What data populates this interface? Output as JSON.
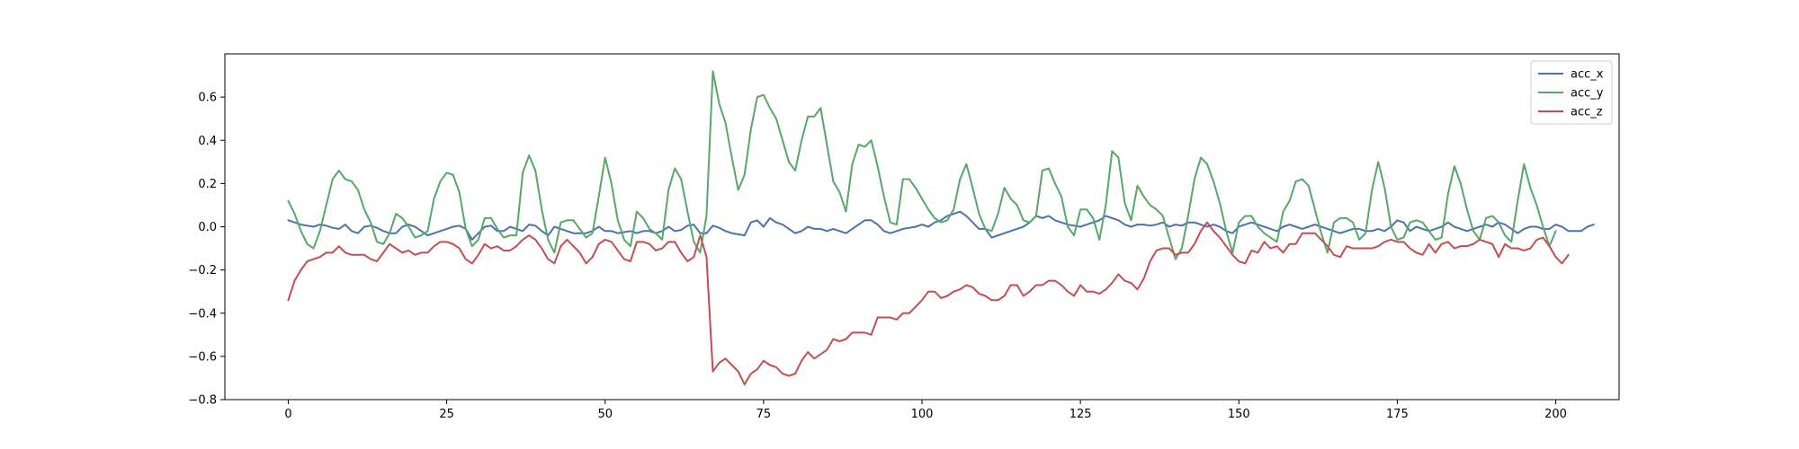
{
  "chart_data": {
    "type": "line",
    "title": "",
    "xlabel": "",
    "ylabel": "",
    "xlim": [
      -10,
      210
    ],
    "ylim": [
      -0.8,
      0.8
    ],
    "grid": false,
    "legend_position": "top-right",
    "x_ticks": [
      0,
      25,
      50,
      75,
      100,
      125,
      150,
      175,
      200
    ],
    "x_tick_labels": [
      "0",
      "25",
      "50",
      "75",
      "100",
      "125",
      "150",
      "175",
      "200"
    ],
    "y_ticks": [
      -0.8,
      -0.6,
      -0.4,
      -0.2,
      0.0,
      0.2,
      0.4,
      0.6
    ],
    "y_tick_labels": [
      "−0.8",
      "−0.6",
      "−0.4",
      "−0.2",
      "0.0",
      "0.2",
      "0.4",
      "0.6"
    ],
    "x_start": 0,
    "x_step": 1,
    "series": [
      {
        "name": "acc_x",
        "color": "#4c72b0",
        "values": [
          0.03,
          0.02,
          0.01,
          0.005,
          0.0,
          0.01,
          0.005,
          -0.005,
          -0.01,
          0.01,
          -0.02,
          -0.03,
          0.0,
          0.005,
          -0.005,
          -0.02,
          -0.03,
          -0.03,
          0.0,
          0.01,
          0.0,
          -0.02,
          -0.04,
          -0.03,
          -0.02,
          -0.01,
          0.0,
          0.005,
          -0.01,
          -0.06,
          -0.03,
          0.0,
          0.005,
          -0.02,
          -0.02,
          0.0,
          -0.01,
          -0.02,
          0.01,
          0.005,
          -0.02,
          -0.04,
          0.0,
          -0.01,
          -0.02,
          -0.03,
          -0.03,
          -0.03,
          -0.02,
          0.0,
          -0.02,
          -0.02,
          -0.03,
          -0.025,
          -0.02,
          -0.03,
          -0.02,
          -0.02,
          -0.03,
          -0.02,
          0.0,
          -0.02,
          -0.015,
          0.005,
          0.01,
          -0.03,
          -0.03,
          0.005,
          -0.005,
          -0.02,
          -0.03,
          -0.035,
          -0.04,
          0.02,
          0.03,
          0.0,
          0.04,
          0.02,
          0.01,
          -0.01,
          -0.03,
          -0.02,
          0.0,
          -0.01,
          -0.01,
          -0.02,
          -0.01,
          -0.02,
          -0.03,
          -0.01,
          0.01,
          0.03,
          0.03,
          0.01,
          -0.02,
          -0.03,
          -0.02,
          -0.01,
          -0.005,
          0.0,
          0.01,
          0.0,
          0.02,
          0.03,
          0.05,
          0.06,
          0.07,
          0.05,
          0.02,
          -0.01,
          -0.01,
          -0.05,
          -0.04,
          -0.03,
          -0.02,
          -0.01,
          0.0,
          0.02,
          0.05,
          0.04,
          0.05,
          0.03,
          0.02,
          0.01,
          0.005,
          0.0,
          0.01,
          0.02,
          0.03,
          0.05,
          0.04,
          0.03,
          0.01,
          0.0,
          0.01,
          0.01,
          0.005,
          0.01,
          0.02,
          0.0,
          0.01,
          0.005,
          0.02,
          0.02,
          0.01,
          0.0,
          0.01,
          0.0,
          -0.02,
          -0.03,
          0.0,
          0.01,
          0.02,
          0.01,
          0.0,
          -0.01,
          -0.02,
          0.0,
          0.01,
          0.0,
          -0.01,
          0.0,
          0.01,
          0.0,
          -0.01,
          -0.02,
          -0.03,
          -0.02,
          -0.01,
          -0.01,
          -0.02,
          -0.02,
          -0.01,
          -0.02,
          0.0,
          0.03,
          0.02,
          -0.02,
          0.0,
          -0.01,
          -0.02,
          -0.01,
          0.0,
          0.02,
          0.0,
          -0.01,
          -0.02,
          -0.01,
          0.0,
          0.01,
          0.0,
          0.02,
          0.01,
          -0.01,
          -0.03,
          -0.01,
          0.0,
          0.0,
          -0.01,
          -0.01,
          0.01,
          0.0,
          -0.02,
          -0.02,
          -0.02,
          0.0,
          0.01
        ]
      },
      {
        "name": "acc_y",
        "color": "#55a868",
        "values": [
          0.12,
          0.06,
          -0.02,
          -0.08,
          -0.1,
          -0.02,
          0.1,
          0.22,
          0.26,
          0.22,
          0.21,
          0.17,
          0.08,
          0.02,
          -0.07,
          -0.08,
          -0.03,
          0.06,
          0.04,
          0.0,
          -0.05,
          -0.04,
          -0.02,
          0.13,
          0.21,
          0.25,
          0.24,
          0.16,
          -0.01,
          -0.09,
          -0.06,
          0.04,
          0.04,
          -0.01,
          -0.05,
          -0.04,
          -0.04,
          0.25,
          0.33,
          0.26,
          0.08,
          -0.06,
          -0.12,
          0.02,
          0.03,
          0.03,
          -0.01,
          -0.05,
          -0.03,
          0.14,
          0.32,
          0.2,
          0.03,
          -0.06,
          -0.09,
          0.07,
          0.04,
          -0.01,
          -0.03,
          -0.06,
          0.17,
          0.27,
          0.22,
          0.07,
          -0.07,
          -0.12,
          0.05,
          0.72,
          0.57,
          0.48,
          0.32,
          0.17,
          0.24,
          0.45,
          0.6,
          0.61,
          0.55,
          0.5,
          0.4,
          0.3,
          0.26,
          0.4,
          0.51,
          0.51,
          0.55,
          0.38,
          0.21,
          0.16,
          0.07,
          0.29,
          0.38,
          0.37,
          0.4,
          0.28,
          0.14,
          0.02,
          0.01,
          0.22,
          0.22,
          0.18,
          0.13,
          0.08,
          0.04,
          0.02,
          0.03,
          0.08,
          0.22,
          0.29,
          0.18,
          0.06,
          -0.01,
          -0.02,
          0.06,
          0.18,
          0.13,
          0.1,
          0.03,
          0.02,
          0.05,
          0.26,
          0.27,
          0.2,
          0.14,
          0.0,
          -0.04,
          0.08,
          0.08,
          0.04,
          -0.06,
          0.1,
          0.35,
          0.32,
          0.11,
          0.03,
          0.19,
          0.14,
          0.1,
          0.08,
          0.05,
          -0.05,
          -0.15,
          -0.1,
          0.05,
          0.22,
          0.32,
          0.29,
          0.21,
          0.11,
          -0.02,
          -0.12,
          0.02,
          0.05,
          0.05,
          0.0,
          -0.03,
          -0.05,
          -0.07,
          0.07,
          0.12,
          0.21,
          0.22,
          0.19,
          0.08,
          -0.03,
          -0.12,
          0.02,
          0.04,
          0.04,
          0.02,
          -0.06,
          -0.03,
          0.17,
          0.3,
          0.18,
          0.0,
          -0.06,
          -0.05,
          0.02,
          0.03,
          0.02,
          -0.02,
          -0.06,
          -0.05,
          0.15,
          0.28,
          0.2,
          0.08,
          -0.02,
          -0.06,
          0.04,
          0.05,
          0.02,
          -0.04,
          -0.07,
          0.12,
          0.29,
          0.18,
          0.1,
          0.0,
          -0.09,
          -0.02
        ]
      },
      {
        "name": "acc_z",
        "color": "#c44e52",
        "values": [
          -0.34,
          -0.25,
          -0.2,
          -0.16,
          -0.15,
          -0.14,
          -0.12,
          -0.12,
          -0.09,
          -0.12,
          -0.13,
          -0.13,
          -0.13,
          -0.15,
          -0.16,
          -0.12,
          -0.08,
          -0.1,
          -0.12,
          -0.11,
          -0.13,
          -0.12,
          -0.12,
          -0.09,
          -0.07,
          -0.07,
          -0.08,
          -0.1,
          -0.15,
          -0.17,
          -0.13,
          -0.08,
          -0.1,
          -0.09,
          -0.11,
          -0.11,
          -0.09,
          -0.06,
          -0.04,
          -0.06,
          -0.1,
          -0.15,
          -0.17,
          -0.09,
          -0.06,
          -0.09,
          -0.12,
          -0.17,
          -0.14,
          -0.08,
          -0.06,
          -0.07,
          -0.11,
          -0.15,
          -0.16,
          -0.07,
          -0.07,
          -0.08,
          -0.11,
          -0.1,
          -0.07,
          -0.07,
          -0.12,
          -0.16,
          -0.14,
          -0.04,
          -0.14,
          -0.67,
          -0.63,
          -0.61,
          -0.64,
          -0.67,
          -0.73,
          -0.68,
          -0.66,
          -0.62,
          -0.64,
          -0.65,
          -0.68,
          -0.69,
          -0.68,
          -0.62,
          -0.58,
          -0.61,
          -0.59,
          -0.57,
          -0.52,
          -0.53,
          -0.52,
          -0.49,
          -0.49,
          -0.49,
          -0.5,
          -0.42,
          -0.42,
          -0.42,
          -0.43,
          -0.4,
          -0.4,
          -0.37,
          -0.34,
          -0.3,
          -0.3,
          -0.33,
          -0.32,
          -0.3,
          -0.29,
          -0.27,
          -0.28,
          -0.31,
          -0.32,
          -0.34,
          -0.34,
          -0.32,
          -0.27,
          -0.27,
          -0.32,
          -0.3,
          -0.27,
          -0.27,
          -0.25,
          -0.25,
          -0.27,
          -0.3,
          -0.32,
          -0.27,
          -0.3,
          -0.3,
          -0.31,
          -0.29,
          -0.26,
          -0.22,
          -0.25,
          -0.26,
          -0.29,
          -0.24,
          -0.16,
          -0.11,
          -0.1,
          -0.1,
          -0.13,
          -0.12,
          -0.12,
          -0.08,
          -0.02,
          0.02,
          -0.02,
          -0.05,
          -0.09,
          -0.13,
          -0.16,
          -0.17,
          -0.11,
          -0.12,
          -0.07,
          -0.1,
          -0.09,
          -0.12,
          -0.08,
          -0.08,
          -0.03,
          -0.03,
          -0.03,
          -0.06,
          -0.09,
          -0.13,
          -0.14,
          -0.09,
          -0.1,
          -0.1,
          -0.1,
          -0.1,
          -0.09,
          -0.07,
          -0.06,
          -0.07,
          -0.07,
          -0.1,
          -0.12,
          -0.13,
          -0.08,
          -0.12,
          -0.08,
          -0.07,
          -0.1,
          -0.09,
          -0.09,
          -0.08,
          -0.06,
          -0.07,
          -0.08,
          -0.14,
          -0.08,
          -0.1,
          -0.1,
          -0.11,
          -0.1,
          -0.06,
          -0.05,
          -0.09,
          -0.14,
          -0.17,
          -0.13
        ]
      }
    ]
  }
}
